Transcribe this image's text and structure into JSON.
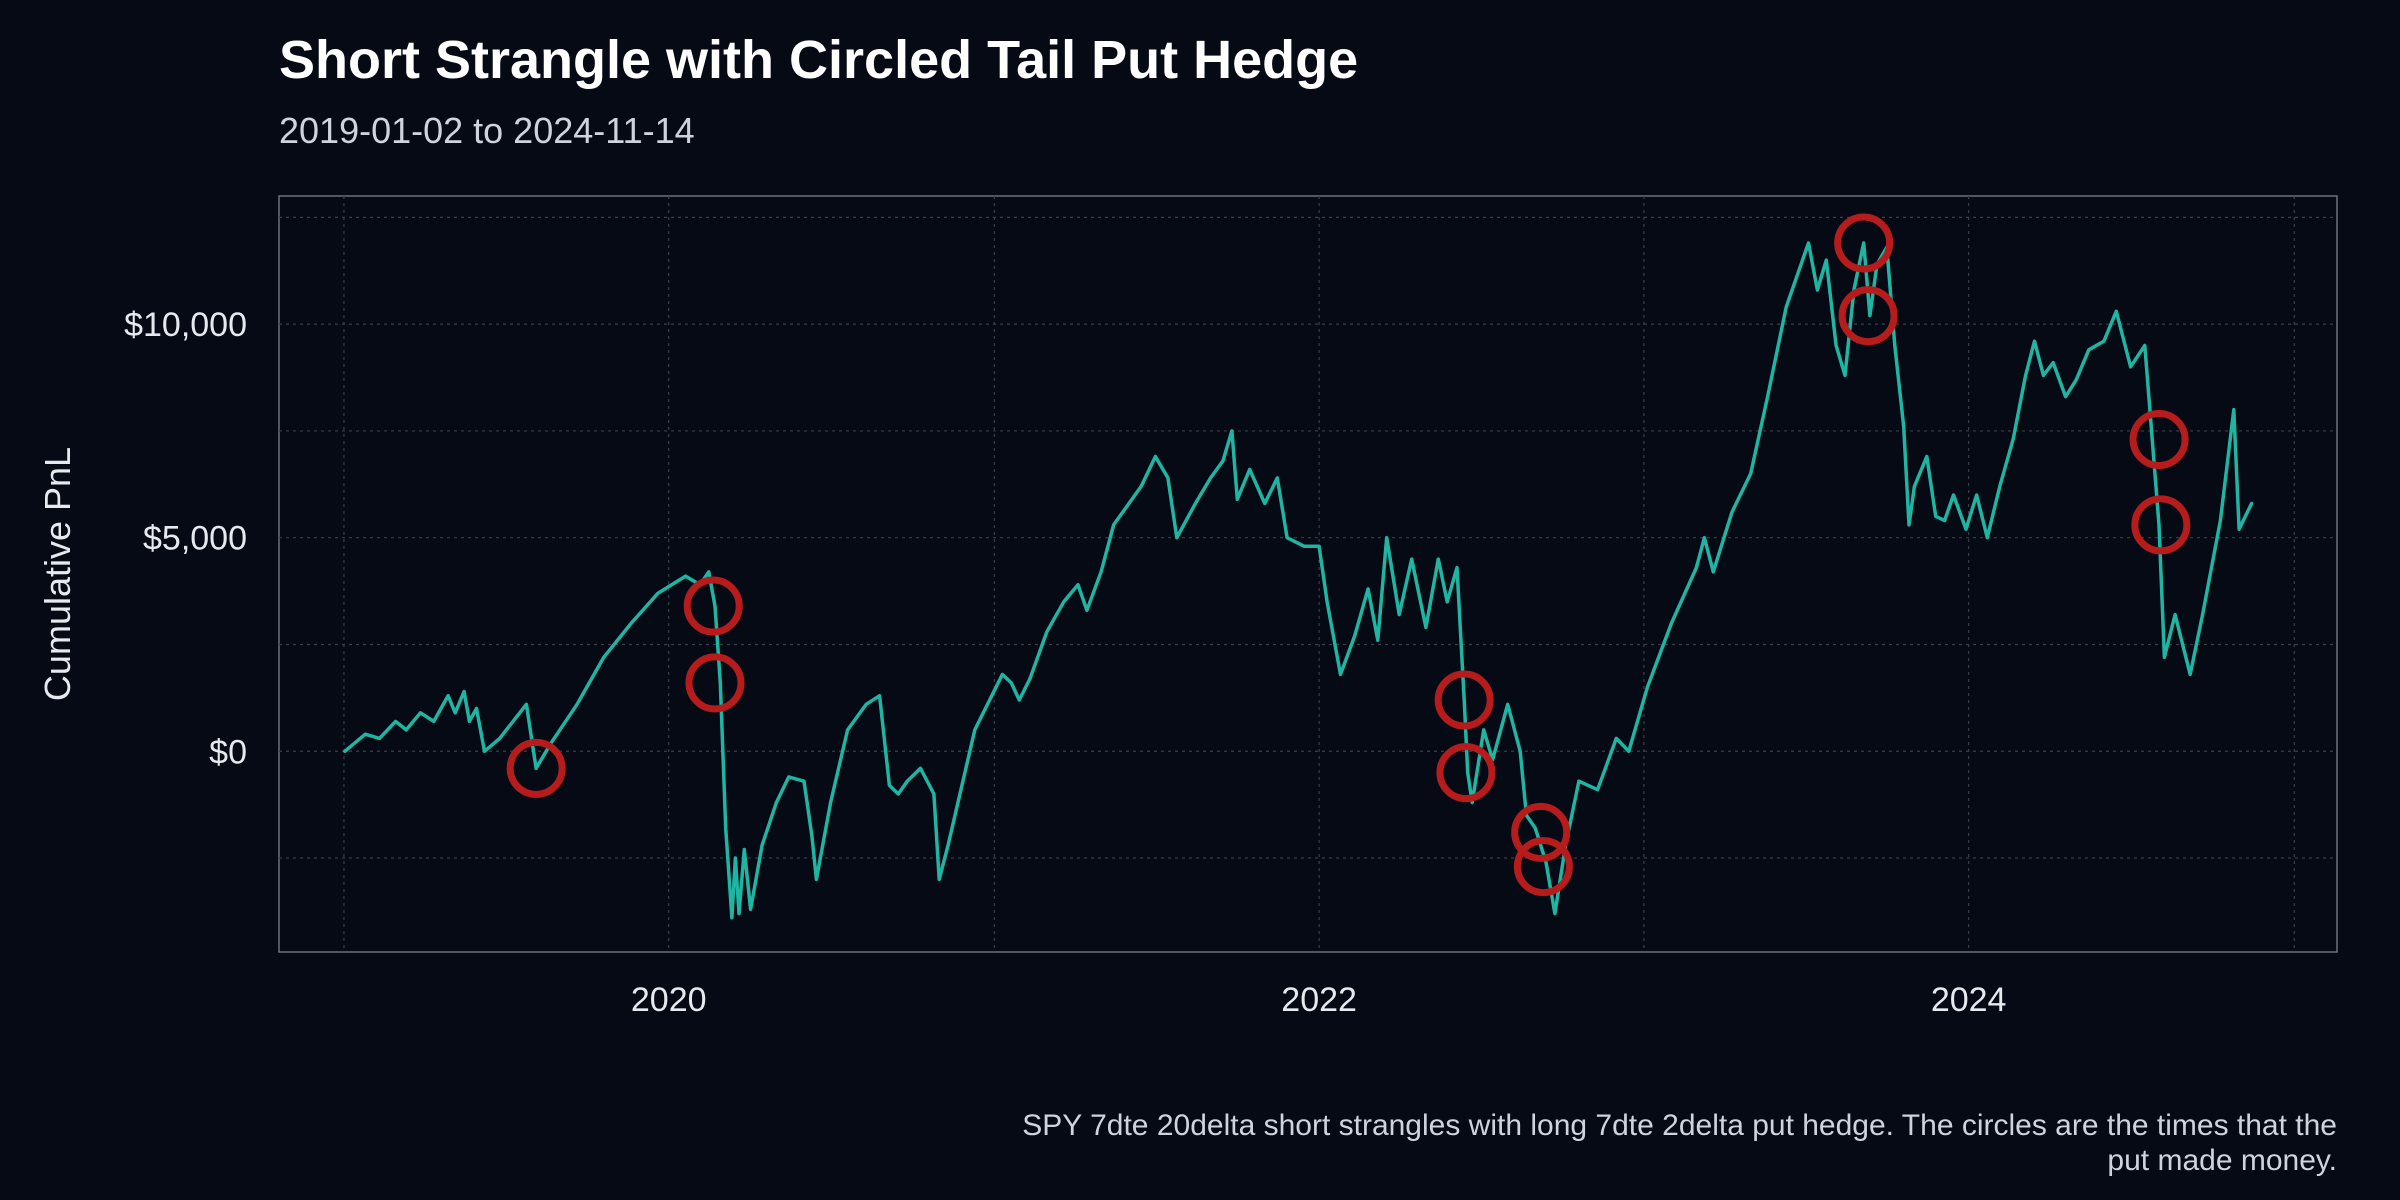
{
  "chart_data": {
    "type": "line",
    "title": "Short Strangle with Circled Tail Put Hedge",
    "subtitle": "2019-01-02 to 2024-11-14",
    "xlabel": "",
    "ylabel": "Cumulative PnL",
    "caption": "SPY 7dte 20delta short strangles with long 7dte 2delta put hedge. The circles are the times that the put made money.",
    "xlim": [
      "2018-10-20",
      "2025-02-18"
    ],
    "ylim": [
      -4700,
      13000
    ],
    "x_ticks": [
      {
        "date": "2020-01-01",
        "label": "2020"
      },
      {
        "date": "2022-01-01",
        "label": "2022"
      },
      {
        "date": "2024-01-01",
        "label": "2024"
      }
    ],
    "x_minor_ticks": [
      "2019-01-01",
      "2021-01-01",
      "2023-01-01",
      "2025-01-01"
    ],
    "y_ticks": [
      {
        "value": 0,
        "label": "$0"
      },
      {
        "value": 5000,
        "label": "$5,000"
      },
      {
        "value": 10000,
        "label": "$10,000"
      }
    ],
    "y_minor_ticks": [
      -2500,
      2500,
      7500,
      12500
    ],
    "grid": true,
    "line_color": "#1fb5a2",
    "circle_color": "#b71c1c",
    "series": [
      {
        "points": [
          [
            "2019-01-02",
            0
          ],
          [
            "2019-01-25",
            400
          ],
          [
            "2019-02-10",
            300
          ],
          [
            "2019-02-28",
            700
          ],
          [
            "2019-03-12",
            500
          ],
          [
            "2019-03-28",
            900
          ],
          [
            "2019-04-12",
            700
          ],
          [
            "2019-04-28",
            1300
          ],
          [
            "2019-05-06",
            900
          ],
          [
            "2019-05-16",
            1400
          ],
          [
            "2019-05-22",
            700
          ],
          [
            "2019-05-30",
            1000
          ],
          [
            "2019-06-08",
            0
          ],
          [
            "2019-06-25",
            300
          ],
          [
            "2019-07-10",
            700
          ],
          [
            "2019-07-25",
            1100
          ],
          [
            "2019-08-05",
            -400
          ],
          [
            "2019-08-22",
            200
          ],
          [
            "2019-09-20",
            1100
          ],
          [
            "2019-10-20",
            2200
          ],
          [
            "2019-11-20",
            3000
          ],
          [
            "2019-12-20",
            3700
          ],
          [
            "2020-01-20",
            4100
          ],
          [
            "2020-02-05",
            3900
          ],
          [
            "2020-02-15",
            4200
          ],
          [
            "2020-02-22",
            3400
          ],
          [
            "2020-02-28",
            1600
          ],
          [
            "2020-03-05",
            -1800
          ],
          [
            "2020-03-12",
            -3900
          ],
          [
            "2020-03-16",
            -2500
          ],
          [
            "2020-03-20",
            -3800
          ],
          [
            "2020-03-26",
            -2300
          ],
          [
            "2020-04-02",
            -3700
          ],
          [
            "2020-04-15",
            -2200
          ],
          [
            "2020-05-01",
            -1200
          ],
          [
            "2020-05-15",
            -600
          ],
          [
            "2020-06-01",
            -700
          ],
          [
            "2020-06-10",
            -2000
          ],
          [
            "2020-06-15",
            -3000
          ],
          [
            "2020-07-01",
            -1200
          ],
          [
            "2020-07-20",
            500
          ],
          [
            "2020-08-10",
            1100
          ],
          [
            "2020-08-25",
            1300
          ],
          [
            "2020-09-05",
            -800
          ],
          [
            "2020-09-15",
            -1000
          ],
          [
            "2020-09-25",
            -700
          ],
          [
            "2020-10-10",
            -400
          ],
          [
            "2020-10-25",
            -1000
          ],
          [
            "2020-10-31",
            -3000
          ],
          [
            "2020-11-10",
            -2200
          ],
          [
            "2020-12-10",
            500
          ],
          [
            "2021-01-10",
            1800
          ],
          [
            "2021-01-20",
            1600
          ],
          [
            "2021-01-29",
            1200
          ],
          [
            "2021-02-10",
            1700
          ],
          [
            "2021-03-01",
            2800
          ],
          [
            "2021-03-20",
            3500
          ],
          [
            "2021-04-05",
            3900
          ],
          [
            "2021-04-15",
            3300
          ],
          [
            "2021-05-01",
            4200
          ],
          [
            "2021-05-15",
            5300
          ],
          [
            "2021-06-15",
            6200
          ],
          [
            "2021-07-01",
            6900
          ],
          [
            "2021-07-15",
            6400
          ],
          [
            "2021-07-25",
            5000
          ],
          [
            "2021-08-15",
            5800
          ],
          [
            "2021-09-01",
            6400
          ],
          [
            "2021-09-15",
            6800
          ],
          [
            "2021-09-25",
            7500
          ],
          [
            "2021-10-01",
            5900
          ],
          [
            "2021-10-15",
            6600
          ],
          [
            "2021-11-01",
            5800
          ],
          [
            "2021-11-15",
            6400
          ],
          [
            "2021-11-26",
            5000
          ],
          [
            "2021-12-15",
            4800
          ],
          [
            "2022-01-01",
            4800
          ],
          [
            "2022-01-10",
            3500
          ],
          [
            "2022-01-25",
            1800
          ],
          [
            "2022-02-10",
            2700
          ],
          [
            "2022-02-25",
            3800
          ],
          [
            "2022-03-08",
            2600
          ],
          [
            "2022-03-18",
            5000
          ],
          [
            "2022-04-01",
            3200
          ],
          [
            "2022-04-15",
            4500
          ],
          [
            "2022-05-01",
            2900
          ],
          [
            "2022-05-15",
            4500
          ],
          [
            "2022-05-25",
            3500
          ],
          [
            "2022-06-05",
            4300
          ],
          [
            "2022-06-13",
            1200
          ],
          [
            "2022-06-17",
            -500
          ],
          [
            "2022-06-22",
            -1200
          ],
          [
            "2022-07-05",
            500
          ],
          [
            "2022-07-15",
            -200
          ],
          [
            "2022-08-01",
            1100
          ],
          [
            "2022-08-15",
            0
          ],
          [
            "2022-08-22",
            -1500
          ],
          [
            "2022-09-01",
            -1800
          ],
          [
            "2022-09-13",
            -2600
          ],
          [
            "2022-09-23",
            -3800
          ],
          [
            "2022-10-05",
            -2200
          ],
          [
            "2022-10-20",
            -700
          ],
          [
            "2022-11-10",
            -900
          ],
          [
            "2022-12-01",
            300
          ],
          [
            "2022-12-15",
            0
          ],
          [
            "2023-01-05",
            1500
          ],
          [
            "2023-02-01",
            3000
          ],
          [
            "2023-03-01",
            4300
          ],
          [
            "2023-03-10",
            5000
          ],
          [
            "2023-03-20",
            4200
          ],
          [
            "2023-04-10",
            5600
          ],
          [
            "2023-05-01",
            6500
          ],
          [
            "2023-05-20",
            8300
          ],
          [
            "2023-06-10",
            10400
          ],
          [
            "2023-06-25",
            11300
          ],
          [
            "2023-07-05",
            11900
          ],
          [
            "2023-07-15",
            10800
          ],
          [
            "2023-07-25",
            11500
          ],
          [
            "2023-08-05",
            9500
          ],
          [
            "2023-08-15",
            8800
          ],
          [
            "2023-08-25",
            10800
          ],
          [
            "2023-09-05",
            11900
          ],
          [
            "2023-09-12",
            10200
          ],
          [
            "2023-09-20",
            11400
          ],
          [
            "2023-10-01",
            11800
          ],
          [
            "2023-10-10",
            9500
          ],
          [
            "2023-10-20",
            7600
          ],
          [
            "2023-10-26",
            5300
          ],
          [
            "2023-11-01",
            6200
          ],
          [
            "2023-11-15",
            6900
          ],
          [
            "2023-11-25",
            5500
          ],
          [
            "2023-12-05",
            5400
          ],
          [
            "2023-12-15",
            6000
          ],
          [
            "2023-12-29",
            5200
          ],
          [
            "2024-01-10",
            6000
          ],
          [
            "2024-01-22",
            5000
          ],
          [
            "2024-02-05",
            6200
          ],
          [
            "2024-02-20",
            7300
          ],
          [
            "2024-03-05",
            8800
          ],
          [
            "2024-03-15",
            9600
          ],
          [
            "2024-03-25",
            8800
          ],
          [
            "2024-04-05",
            9100
          ],
          [
            "2024-04-19",
            8300
          ],
          [
            "2024-05-01",
            8700
          ],
          [
            "2024-05-15",
            9400
          ],
          [
            "2024-06-01",
            9600
          ],
          [
            "2024-06-15",
            10300
          ],
          [
            "2024-07-01",
            9000
          ],
          [
            "2024-07-17",
            9500
          ],
          [
            "2024-07-25",
            7400
          ],
          [
            "2024-08-02",
            5300
          ],
          [
            "2024-08-08",
            2200
          ],
          [
            "2024-08-20",
            3200
          ],
          [
            "2024-09-06",
            1800
          ],
          [
            "2024-09-20",
            3200
          ],
          [
            "2024-10-10",
            5400
          ],
          [
            "2024-10-25",
            8000
          ],
          [
            "2024-10-31",
            5200
          ],
          [
            "2024-11-14",
            5800
          ]
        ]
      }
    ],
    "circles": [
      {
        "date": "2019-08-05",
        "value": -400
      },
      {
        "date": "2020-02-20",
        "value": 3400
      },
      {
        "date": "2020-02-22",
        "value": 1600
      },
      {
        "date": "2022-06-13",
        "value": 1200
      },
      {
        "date": "2022-06-15",
        "value": -500
      },
      {
        "date": "2022-09-07",
        "value": -1900
      },
      {
        "date": "2022-09-10",
        "value": -2700
      },
      {
        "date": "2023-09-05",
        "value": 11900
      },
      {
        "date": "2023-09-10",
        "value": 10200
      },
      {
        "date": "2024-08-02",
        "value": 7300
      },
      {
        "date": "2024-08-04",
        "value": 5300
      }
    ]
  }
}
